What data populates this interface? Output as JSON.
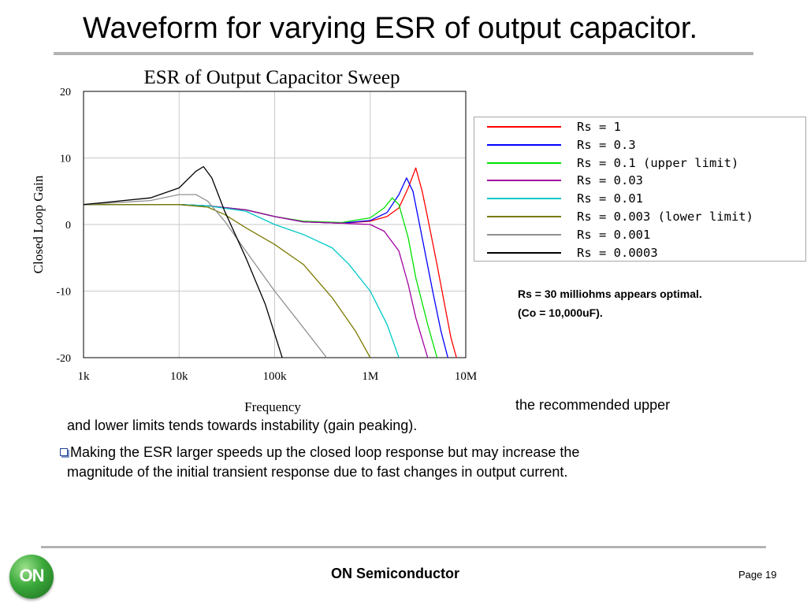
{
  "slide": {
    "title": "Waveform for varying ESR of output capacitor.",
    "bullets": [
      {
        "line1": "the recommended upper",
        "line2": "and lower limits tends towards instability (gain peaking)."
      },
      {
        "line1": "Making the ESR larger speeds up the closed loop response but may increase the",
        "line2": "magnitude of the initial transient response due to fast changes in output current."
      }
    ],
    "notes": [
      "Rs = 30 milliohms appears optimal.",
      "(Co = 10,000uF)."
    ],
    "footer": {
      "company": "ON Semiconductor",
      "page": "Page 19",
      "logo_text": "ON"
    }
  },
  "chart_data": {
    "type": "line",
    "title": "ESR of Output Capacitor Sweep",
    "xlabel": "Frequency",
    "ylabel": "Closed Loop Gain",
    "x_scale": "log",
    "xlim": [
      1000,
      10000000
    ],
    "ylim": [
      -20,
      20
    ],
    "x_ticks": [
      1000,
      10000,
      100000,
      1000000,
      10000000
    ],
    "x_tick_labels": [
      "1k",
      "10k",
      "100k",
      "1M",
      "10M"
    ],
    "y_ticks": [
      20,
      10,
      0,
      -10,
      -20
    ],
    "y_tick_labels": [
      "20",
      "10",
      "0",
      "-10",
      "-20"
    ],
    "grid": true,
    "series": [
      {
        "name": "Rs = 1",
        "color": "#ff0000",
        "points": [
          [
            1000,
            3
          ],
          [
            10000,
            3
          ],
          [
            20000,
            2.8
          ],
          [
            50000,
            2.2
          ],
          [
            100000,
            1.2
          ],
          [
            200000,
            0.4
          ],
          [
            500000,
            0.2
          ],
          [
            1000000,
            0.5
          ],
          [
            1500000,
            1.2
          ],
          [
            2000000,
            2.5
          ],
          [
            2500000,
            5.5
          ],
          [
            3000000,
            8.5
          ],
          [
            3500000,
            5
          ],
          [
            4000000,
            1
          ],
          [
            5000000,
            -6
          ],
          [
            6000000,
            -12
          ],
          [
            7000000,
            -17
          ],
          [
            8000000,
            -20
          ]
        ]
      },
      {
        "name": "Rs = 0.3",
        "color": "#0000ff",
        "points": [
          [
            1000,
            3
          ],
          [
            10000,
            3
          ],
          [
            20000,
            2.8
          ],
          [
            50000,
            2.2
          ],
          [
            100000,
            1.2
          ],
          [
            200000,
            0.4
          ],
          [
            500000,
            0.2
          ],
          [
            1000000,
            0.6
          ],
          [
            1500000,
            1.8
          ],
          [
            2000000,
            4.5
          ],
          [
            2400000,
            7
          ],
          [
            2800000,
            5
          ],
          [
            3500000,
            -2
          ],
          [
            4500000,
            -10
          ],
          [
            5500000,
            -16
          ],
          [
            6500000,
            -20
          ]
        ]
      },
      {
        "name": "Rs = 0.1 (upper limit)",
        "color": "#00e000",
        "points": [
          [
            1000,
            3
          ],
          [
            10000,
            3
          ],
          [
            20000,
            2.8
          ],
          [
            50000,
            2.2
          ],
          [
            100000,
            1.2
          ],
          [
            200000,
            0.5
          ],
          [
            500000,
            0.3
          ],
          [
            1000000,
            1
          ],
          [
            1400000,
            2.5
          ],
          [
            1700000,
            4
          ],
          [
            2000000,
            3
          ],
          [
            2500000,
            -2
          ],
          [
            3000000,
            -8
          ],
          [
            4000000,
            -15
          ],
          [
            5000000,
            -20
          ]
        ]
      },
      {
        "name": "Rs = 0.03",
        "color": "#a000a0",
        "points": [
          [
            1000,
            3
          ],
          [
            10000,
            3
          ],
          [
            20000,
            2.8
          ],
          [
            50000,
            2.2
          ],
          [
            100000,
            1.2
          ],
          [
            200000,
            0.4
          ],
          [
            500000,
            0.2
          ],
          [
            1000000,
            0
          ],
          [
            1400000,
            -1
          ],
          [
            2000000,
            -4
          ],
          [
            2500000,
            -9
          ],
          [
            3000000,
            -14
          ],
          [
            4000000,
            -20
          ]
        ]
      },
      {
        "name": "Rs = 0.01",
        "color": "#00c8c8",
        "points": [
          [
            1000,
            3
          ],
          [
            10000,
            3
          ],
          [
            20000,
            2.8
          ],
          [
            50000,
            2
          ],
          [
            100000,
            0
          ],
          [
            200000,
            -1.5
          ],
          [
            400000,
            -3.5
          ],
          [
            600000,
            -6
          ],
          [
            1000000,
            -10
          ],
          [
            1500000,
            -15
          ],
          [
            2000000,
            -20
          ]
        ]
      },
      {
        "name": "Rs = 0.003 (lower limit)",
        "color": "#7a7a00",
        "points": [
          [
            1000,
            3
          ],
          [
            10000,
            3
          ],
          [
            20000,
            2.6
          ],
          [
            30000,
            1.5
          ],
          [
            50000,
            -0.5
          ],
          [
            100000,
            -3
          ],
          [
            200000,
            -6
          ],
          [
            400000,
            -11
          ],
          [
            700000,
            -16
          ],
          [
            1000000,
            -20
          ]
        ]
      },
      {
        "name": "Rs = 0.001",
        "color": "#909090",
        "points": [
          [
            1000,
            3
          ],
          [
            5000,
            3.6
          ],
          [
            10000,
            4.5
          ],
          [
            15000,
            4.5
          ],
          [
            20000,
            3.5
          ],
          [
            30000,
            0.5
          ],
          [
            50000,
            -4
          ],
          [
            100000,
            -10
          ],
          [
            200000,
            -15.5
          ],
          [
            350000,
            -20
          ]
        ]
      },
      {
        "name": "Rs = 0.0003",
        "color": "#000000",
        "points": [
          [
            1000,
            3
          ],
          [
            5000,
            4
          ],
          [
            10000,
            5.5
          ],
          [
            15000,
            8
          ],
          [
            18000,
            8.7
          ],
          [
            22000,
            7
          ],
          [
            30000,
            2
          ],
          [
            50000,
            -5
          ],
          [
            80000,
            -12
          ],
          [
            120000,
            -20
          ]
        ]
      }
    ]
  }
}
